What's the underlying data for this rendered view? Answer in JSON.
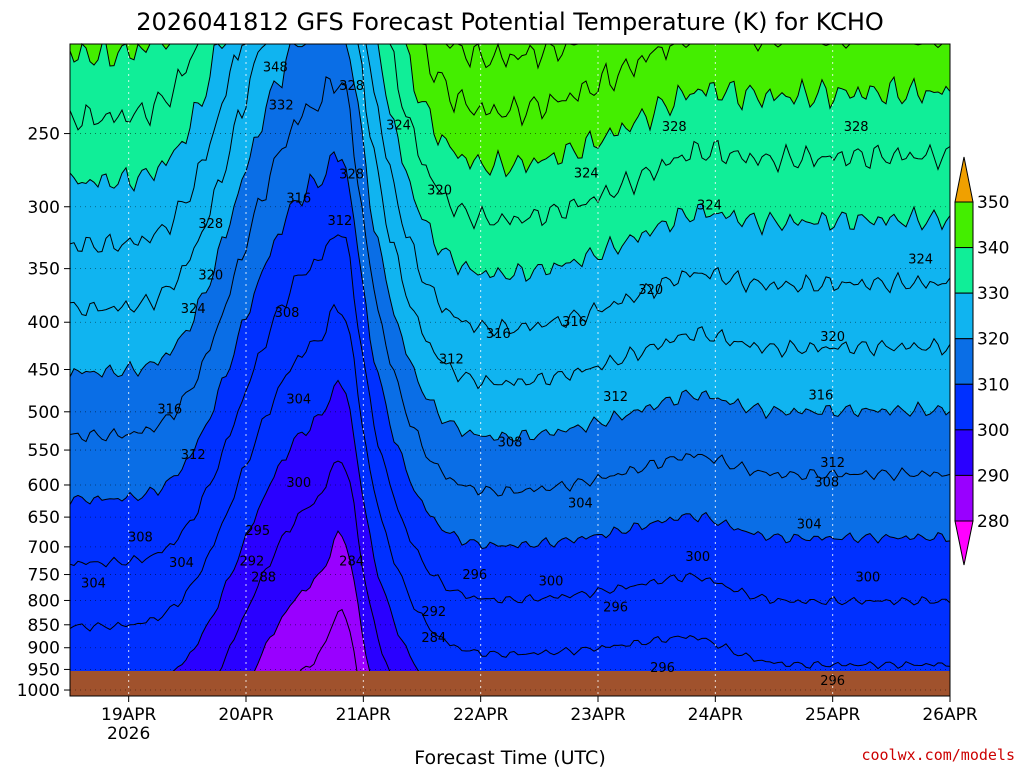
{
  "chart_data": {
    "type": "contour",
    "title": "2026041812 GFS Forecast Potential Temperature (K) for KCHO",
    "xlabel": "Forecast Time (UTC)",
    "ylabel": "",
    "x_ticks": [
      {
        "label": "19APR",
        "sub": "2026",
        "t": 0.5
      },
      {
        "label": "20APR",
        "sub": "",
        "t": 1.5
      },
      {
        "label": "21APR",
        "sub": "",
        "t": 2.5
      },
      {
        "label": "22APR",
        "sub": "",
        "t": 3.5
      },
      {
        "label": "23APR",
        "sub": "",
        "t": 4.5
      },
      {
        "label": "24APR",
        "sub": "",
        "t": 5.5
      },
      {
        "label": "25APR",
        "sub": "",
        "t": 6.5
      },
      {
        "label": "26APR",
        "sub": "",
        "t": 7.5
      }
    ],
    "xlim": [
      0,
      7.5
    ],
    "y_ticks": [
      250,
      300,
      350,
      400,
      450,
      500,
      550,
      600,
      650,
      700,
      750,
      800,
      850,
      900,
      950,
      1000
    ],
    "ylim": [
      200,
      1015
    ],
    "y_scale": "log",
    "colorbar": {
      "levels": [
        280,
        290,
        300,
        310,
        320,
        330,
        340,
        350
      ],
      "colors": [
        "#ff00ff",
        "#9900ff",
        "#2a00ff",
        "#0030ff",
        "#0a6ee6",
        "#10b4f0",
        "#10ee98",
        "#44ee00",
        "#f0f000",
        "#f0a000"
      ]
    },
    "contour_labels": [
      {
        "text": "348",
        "t": 1.75,
        "p": 212
      },
      {
        "text": "332",
        "t": 1.8,
        "p": 233
      },
      {
        "text": "328",
        "t": 2.4,
        "p": 222
      },
      {
        "text": "324",
        "t": 2.8,
        "p": 245
      },
      {
        "text": "328",
        "t": 2.4,
        "p": 277
      },
      {
        "text": "320",
        "t": 3.15,
        "p": 288
      },
      {
        "text": "316",
        "t": 1.95,
        "p": 294
      },
      {
        "text": "312",
        "t": 2.3,
        "p": 311
      },
      {
        "text": "328",
        "t": 1.2,
        "p": 313
      },
      {
        "text": "324",
        "t": 4.4,
        "p": 276
      },
      {
        "text": "328",
        "t": 5.15,
        "p": 246
      },
      {
        "text": "328",
        "t": 6.7,
        "p": 246
      },
      {
        "text": "324",
        "t": 5.45,
        "p": 299
      },
      {
        "text": "320",
        "t": 1.2,
        "p": 356
      },
      {
        "text": "324",
        "t": 1.05,
        "p": 387
      },
      {
        "text": "308",
        "t": 1.85,
        "p": 391
      },
      {
        "text": "316",
        "t": 3.65,
        "p": 412
      },
      {
        "text": "316",
        "t": 4.3,
        "p": 400
      },
      {
        "text": "320",
        "t": 4.95,
        "p": 369
      },
      {
        "text": "324",
        "t": 7.25,
        "p": 342
      },
      {
        "text": "320",
        "t": 6.5,
        "p": 415
      },
      {
        "text": "312",
        "t": 3.25,
        "p": 439
      },
      {
        "text": "304",
        "t": 1.95,
        "p": 485
      },
      {
        "text": "316",
        "t": 0.85,
        "p": 497
      },
      {
        "text": "312",
        "t": 4.65,
        "p": 482
      },
      {
        "text": "316",
        "t": 6.4,
        "p": 480
      },
      {
        "text": "308",
        "t": 3.75,
        "p": 540
      },
      {
        "text": "312",
        "t": 1.05,
        "p": 557
      },
      {
        "text": "312",
        "t": 6.5,
        "p": 568
      },
      {
        "text": "300",
        "t": 1.95,
        "p": 597
      },
      {
        "text": "308",
        "t": 6.45,
        "p": 596
      },
      {
        "text": "304",
        "t": 4.35,
        "p": 628
      },
      {
        "text": "304",
        "t": 6.3,
        "p": 662
      },
      {
        "text": "308",
        "t": 0.6,
        "p": 684
      },
      {
        "text": "295",
        "t": 1.6,
        "p": 673
      },
      {
        "text": "300",
        "t": 5.35,
        "p": 718
      },
      {
        "text": "304",
        "t": 0.95,
        "p": 729
      },
      {
        "text": "292",
        "t": 1.55,
        "p": 726
      },
      {
        "text": "284",
        "t": 2.4,
        "p": 726
      },
      {
        "text": "288",
        "t": 1.65,
        "p": 756
      },
      {
        "text": "296",
        "t": 3.45,
        "p": 751
      },
      {
        "text": "300",
        "t": 4.1,
        "p": 763
      },
      {
        "text": "300",
        "t": 6.8,
        "p": 756
      },
      {
        "text": "304",
        "t": 0.2,
        "p": 767
      },
      {
        "text": "292",
        "t": 3.1,
        "p": 823
      },
      {
        "text": "296",
        "t": 4.65,
        "p": 814
      },
      {
        "text": "284",
        "t": 3.1,
        "p": 878
      },
      {
        "text": "296",
        "t": 5.05,
        "p": 947
      },
      {
        "text": "296",
        "t": 6.5,
        "p": 978
      }
    ]
  },
  "credit": "coolwx.com/models"
}
